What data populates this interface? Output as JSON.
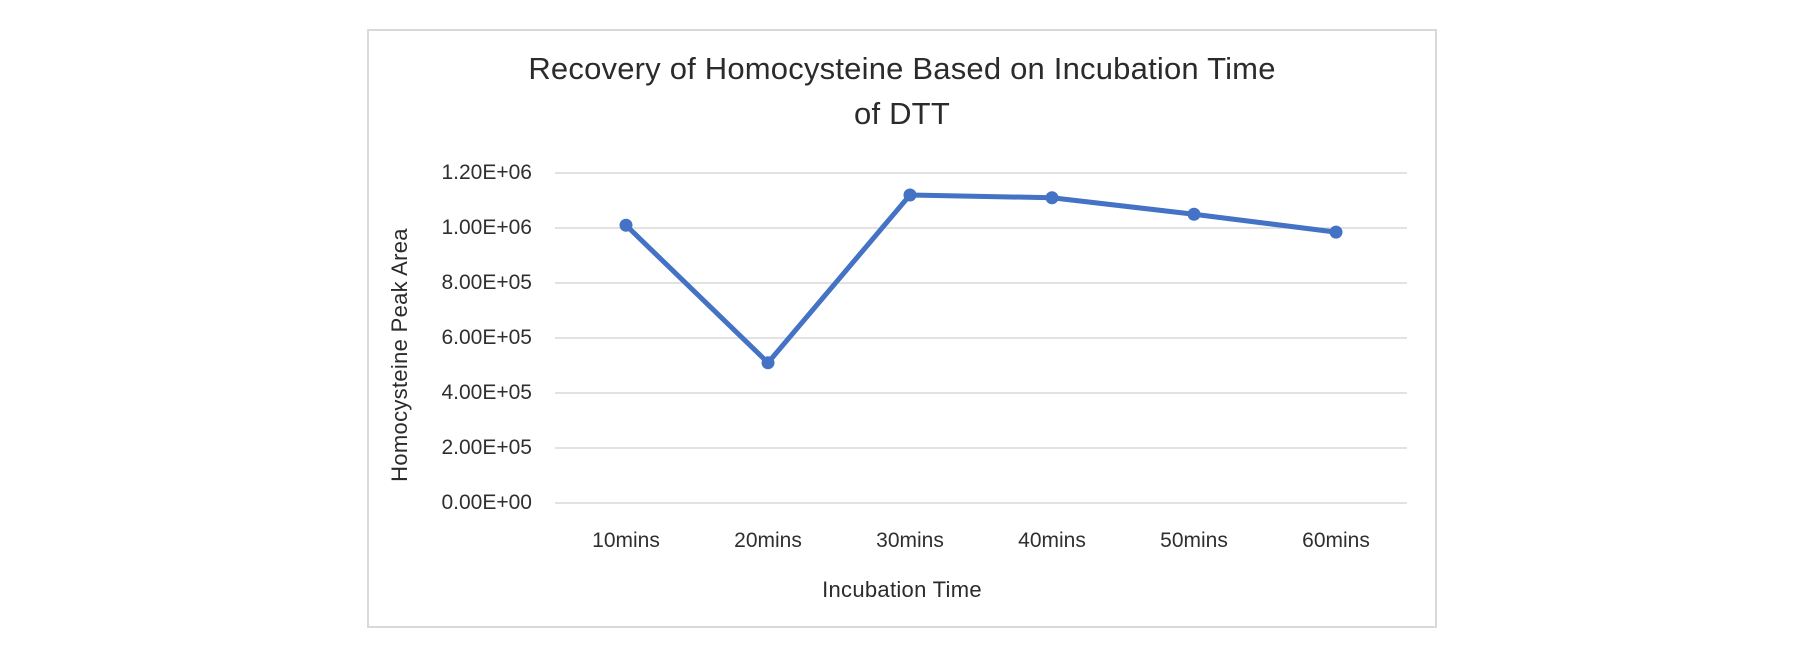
{
  "chart": {
    "title_line1": "Recovery of Homocysteine Based on Incubation Time",
    "title_line2": "of DTT",
    "y_axis_title": "Homocysteine Peak Area",
    "x_axis_title": "Incubation Time"
  },
  "chart_data": {
    "type": "line",
    "title": "Recovery of Homocysteine Based on Incubation Time of DTT",
    "xlabel": "Incubation Time",
    "ylabel": "Homocysteine Peak Area",
    "categories": [
      "10mins",
      "20mins",
      "30mins",
      "40mins",
      "50mins",
      "60mins"
    ],
    "series": [
      {
        "name": "Homocysteine Peak Area",
        "values": [
          1010000,
          510000,
          1120000,
          1110000,
          1050000,
          985000
        ]
      }
    ],
    "ylim": [
      0,
      1200000
    ],
    "y_tick_interval": 200000,
    "y_tick_labels": [
      "0.00E+00",
      "2.00E+05",
      "4.00E+05",
      "6.00E+05",
      "8.00E+05",
      "1.00E+06",
      "1.20E+06"
    ],
    "grid": "horizontal",
    "legend": "none",
    "marker": "circle",
    "line_color": "#4472C4",
    "gridline_color": "#D9D9D9",
    "axis_text_color": "#2f2f2f",
    "title_text_color": "#2b2b2b"
  }
}
